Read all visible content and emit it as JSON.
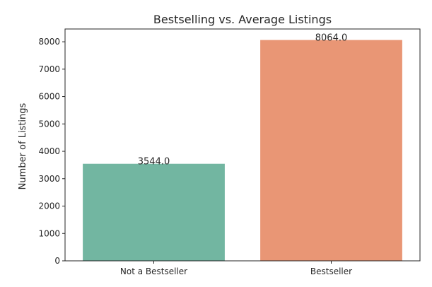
{
  "chart_data": {
    "type": "bar",
    "title": "Bestselling vs. Average Listings",
    "xlabel": "",
    "ylabel": "Number of Listings",
    "categories": [
      "Not a Bestseller",
      "Bestseller"
    ],
    "values": [
      3544.0,
      8064.0
    ],
    "data_labels": [
      "3544.0",
      "8064.0"
    ],
    "colors": [
      "#72b6a1",
      "#e99675"
    ],
    "ylim": [
      0,
      8467
    ],
    "yticks": [
      0,
      1000,
      2000,
      3000,
      4000,
      5000,
      6000,
      7000,
      8000
    ],
    "ytick_labels": [
      "0",
      "1000",
      "2000",
      "3000",
      "4000",
      "5000",
      "6000",
      "7000",
      "8000"
    ],
    "grid": false,
    "legend": "none"
  }
}
